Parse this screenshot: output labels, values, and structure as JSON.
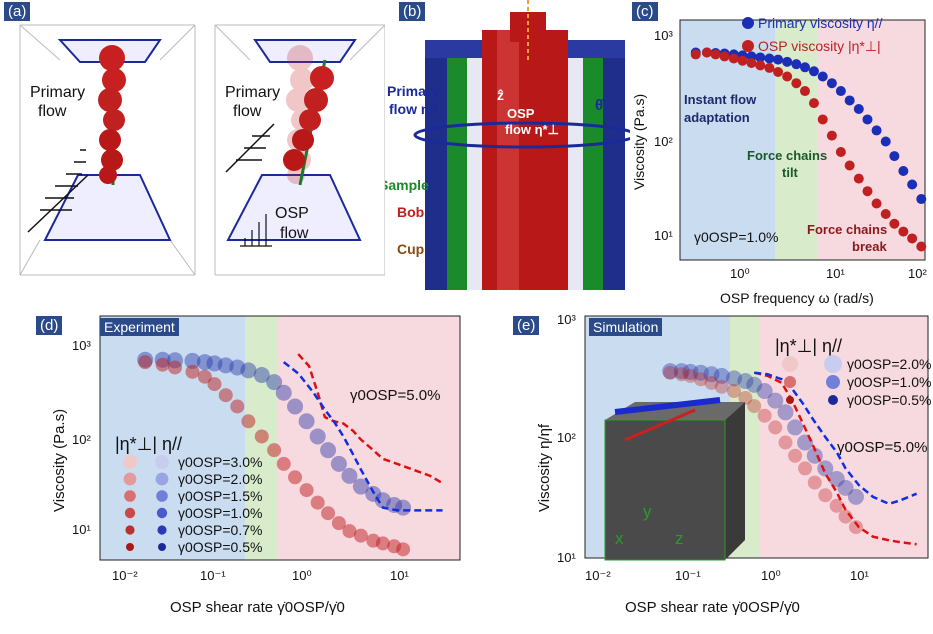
{
  "panel_a": {
    "label": "(a)",
    "primary_flow_left": [
      "Primary",
      "flow"
    ],
    "primary_flow_right": [
      "Primary",
      "flow"
    ],
    "osp_flow": [
      "OSP",
      "flow"
    ]
  },
  "panel_b": {
    "label": "(b)",
    "primary_flow": [
      "Primary",
      "flow η//"
    ],
    "osp_flow": [
      "OSP",
      "flow η*⊥"
    ],
    "z_hat": "ẑ",
    "theta_hat": "θ̂",
    "sample": "Sample",
    "bob": "Bob",
    "cup": "Cup"
  },
  "panel_c": {
    "label": "(c)",
    "legend_primary": "Primary viscosity η//",
    "legend_osp": "OSP viscosity |η*⊥|",
    "region_1": [
      "Instant flow",
      "adaptation"
    ],
    "region_2": [
      "Force chains",
      "tilt"
    ],
    "region_3": [
      "Force chains",
      "break"
    ],
    "gamma_note": "γ0OSP=1.0%",
    "ylabel": "Viscosity (Pa.s)",
    "xlabel": "OSP frequency ω (rad/s)",
    "xticks": [
      "10⁰",
      "10¹",
      "10²"
    ],
    "yticks": [
      "10¹",
      "10²",
      "10³"
    ]
  },
  "panel_d": {
    "label": "(d)",
    "title": "Experiment",
    "ylabel": "Viscosity (Pa.s)",
    "xlabel": "OSP shear rate γ̇0OSP/γ̇0",
    "xticks": [
      "10⁻²",
      "10⁻¹",
      "10⁰",
      "10¹"
    ],
    "yticks": [
      "10¹",
      "10²",
      "10³"
    ],
    "legend_header": "|η*⊥| η//",
    "legend": [
      "γ0OSP=3.0%",
      "γ0OSP=2.0%",
      "γ0OSP=1.5%",
      "γ0OSP=1.0%",
      "γ0OSP=0.7%",
      "γ0OSP=0.5%"
    ],
    "annotation": "γ0OSP=5.0%"
  },
  "panel_e": {
    "label": "(e)",
    "title": "Simulation",
    "ylabel": "Viscosity η/ηf",
    "xlabel": "OSP shear rate γ̇0OSP/γ̇0",
    "xticks": [
      "10⁻²",
      "10⁻¹",
      "10⁰",
      "10¹"
    ],
    "yticks": [
      "10¹",
      "10²",
      "10³"
    ],
    "legend_header": "|η*⊥| η//",
    "legend": [
      "γ0OSP=2.0%",
      "γ0OSP=1.0%",
      "γ0OSP=0.5%"
    ],
    "annotation": "γ0OSP=5.0%",
    "axes": [
      "x",
      "y",
      "z"
    ]
  },
  "chart_data": [
    {
      "type": "scatter",
      "panel": "c",
      "xlabel": "OSP frequency ω (rad/s)",
      "ylabel": "Viscosity (Pa.s)",
      "xscale": "log",
      "yscale": "log",
      "xlim": [
        0.2,
        110
      ],
      "ylim": [
        6,
        1000
      ],
      "series": [
        {
          "name": "Primary viscosity η//",
          "color": "#1a2fb5",
          "x": [
            0.3,
            0.4,
            0.5,
            0.63,
            0.8,
            1.0,
            1.26,
            1.58,
            2.0,
            2.5,
            3.16,
            4.0,
            5.0,
            6.3,
            7.9,
            10,
            12.6,
            15.8,
            20,
            25,
            31.6,
            40,
            50,
            63,
            79,
            100
          ],
          "y": [
            500,
            500,
            495,
            490,
            480,
            470,
            460,
            450,
            440,
            430,
            410,
            390,
            365,
            335,
            300,
            260,
            220,
            180,
            150,
            120,
            95,
            75,
            55,
            40,
            30,
            22
          ]
        },
        {
          "name": "OSP viscosity |η*⊥|",
          "color": "#c02020",
          "x": [
            0.3,
            0.4,
            0.5,
            0.63,
            0.8,
            1.0,
            1.26,
            1.58,
            2.0,
            2.5,
            3.16,
            4.0,
            5.0,
            6.3,
            7.9,
            10,
            12.6,
            15.8,
            20,
            25,
            31.6,
            40,
            50,
            63,
            79,
            100
          ],
          "y": [
            480,
            500,
            480,
            460,
            440,
            420,
            400,
            380,
            360,
            330,
            300,
            260,
            220,
            170,
            120,
            85,
            60,
            45,
            34,
            26,
            20,
            16,
            13,
            11,
            9.5,
            8
          ]
        }
      ]
    },
    {
      "type": "scatter",
      "panel": "d",
      "xlabel": "OSP shear rate γ̇0OSP/γ̇0",
      "ylabel": "Viscosity (Pa.s)",
      "xscale": "log",
      "yscale": "log",
      "xlim": [
        0.007,
        30
      ],
      "ylim": [
        6,
        1000
      ],
      "primary_x": [
        0.02,
        0.03,
        0.04,
        0.06,
        0.08,
        0.1,
        0.13,
        0.17,
        0.22,
        0.3,
        0.4,
        0.5,
        0.65,
        0.85,
        1.1,
        1.4,
        1.8,
        2.3,
        3,
        4,
        5,
        6.5,
        8
      ],
      "primary_y": [
        400,
        400,
        395,
        390,
        380,
        370,
        355,
        340,
        320,
        290,
        250,
        200,
        150,
        110,
        80,
        60,
        45,
        35,
        28,
        24,
        21,
        19,
        18
      ],
      "osp_x": [
        0.02,
        0.03,
        0.04,
        0.06,
        0.08,
        0.1,
        0.13,
        0.17,
        0.22,
        0.3,
        0.4,
        0.5,
        0.65,
        0.85,
        1.1,
        1.4,
        1.8,
        2.3,
        3,
        4,
        5,
        6.5,
        8
      ],
      "osp_y": [
        380,
        360,
        340,
        310,
        280,
        240,
        190,
        150,
        110,
        80,
        60,
        45,
        34,
        26,
        20,
        16,
        13,
        11,
        10,
        9,
        8.5,
        8,
        7.5
      ],
      "annotation_curves": [
        {
          "name": "γ0OSP=5.0% |η*⊥|",
          "color": "#e01010",
          "x": [
            0.7,
            0.9,
            1.1,
            1.3,
            1.6,
            2,
            2.5,
            3,
            4,
            5,
            7,
            10,
            15,
            20
          ],
          "y": [
            450,
            350,
            200,
            120,
            110,
            105,
            90,
            75,
            60,
            50,
            45,
            40,
            35,
            30
          ]
        },
        {
          "name": "γ0OSP=5.0% η//",
          "color": "#1030e0",
          "x": [
            0.5,
            0.7,
            1,
            1.3,
            1.6,
            2,
            2.5,
            3,
            4,
            5,
            7,
            10,
            15,
            20
          ],
          "y": [
            380,
            300,
            200,
            140,
            110,
            80,
            55,
            40,
            25,
            18,
            17,
            17,
            17,
            17
          ]
        }
      ]
    },
    {
      "type": "scatter",
      "panel": "e",
      "xlabel": "OSP shear rate γ̇0OSP/γ̇0",
      "ylabel": "Viscosity η/ηf",
      "xscale": "log",
      "yscale": "log",
      "xlim": [
        0.007,
        40
      ],
      "ylim": [
        10,
        1000
      ],
      "primary_x": [
        0.06,
        0.08,
        0.1,
        0.13,
        0.17,
        0.22,
        0.3,
        0.4,
        0.5,
        0.65,
        0.85,
        1.1,
        1.4,
        1.8,
        2.3,
        3,
        4,
        5,
        6.5
      ],
      "primary_y": [
        350,
        350,
        345,
        340,
        330,
        320,
        305,
        290,
        270,
        240,
        200,
        160,
        120,
        90,
        70,
        55,
        45,
        38,
        32
      ],
      "osp_x": [
        0.06,
        0.08,
        0.1,
        0.13,
        0.17,
        0.22,
        0.3,
        0.4,
        0.5,
        0.65,
        0.85,
        1.1,
        1.4,
        1.8,
        2.3,
        3,
        4,
        5,
        6.5
      ],
      "osp_y": [
        340,
        330,
        320,
        300,
        280,
        260,
        240,
        210,
        180,
        150,
        120,
        90,
        70,
        55,
        42,
        33,
        27,
        22,
        18
      ],
      "annotation_curves": [
        {
          "name": "γ0OSP=5.0% |η*⊥|",
          "color": "#e01010",
          "x": [
            0.5,
            0.7,
            1,
            1.3,
            1.7,
            2.2,
            3,
            4,
            5,
            7,
            10,
            15,
            20,
            30
          ],
          "y": [
            340,
            320,
            280,
            200,
            130,
            85,
            50,
            35,
            25,
            18,
            15,
            14,
            13.5,
            13
          ]
        },
        {
          "name": "γ0OSP=5.0% η//",
          "color": "#1030e0",
          "x": [
            0.5,
            0.7,
            1,
            1.3,
            1.7,
            2.2,
            3,
            4,
            5,
            7,
            10,
            15,
            20,
            30
          ],
          "y": [
            340,
            330,
            300,
            250,
            190,
            140,
            100,
            75,
            55,
            40,
            32,
            28,
            30,
            34
          ]
        }
      ]
    }
  ]
}
